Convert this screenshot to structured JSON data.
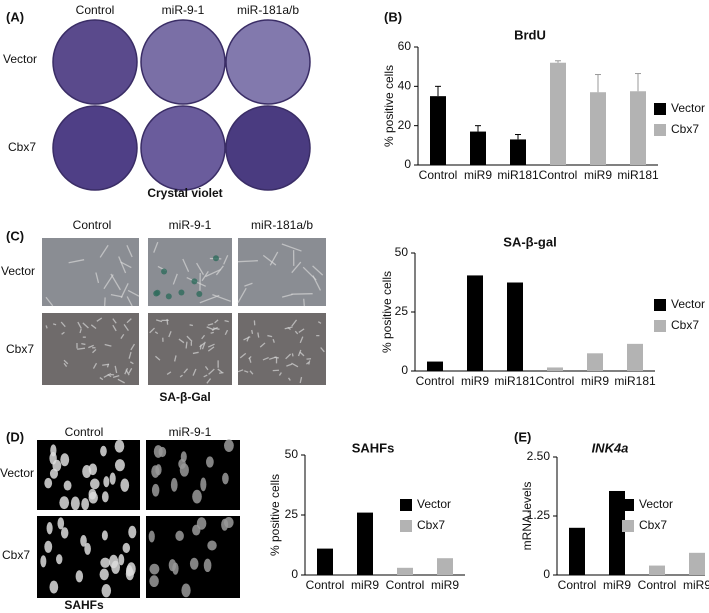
{
  "panels": {
    "A": {
      "label": "(A)",
      "columns": [
        "Control",
        "miR-9-1",
        "miR-181a/b"
      ],
      "rows": [
        "Vector",
        "Cbx7"
      ],
      "caption": "Crystal violet"
    },
    "C": {
      "label": "(C)",
      "columns": [
        "Control",
        "miR-9-1",
        "miR-181a/b"
      ],
      "rows": [
        "Vector",
        "Cbx7"
      ],
      "caption": "SA-β-Gal"
    },
    "D": {
      "label": "(D)",
      "columns": [
        "Control",
        "miR-9-1"
      ],
      "rows": [
        "Vector",
        "Cbx7"
      ],
      "caption": "SAHFs"
    }
  },
  "chart_data": [
    {
      "type": "bar",
      "panel": "(B)",
      "title": "BrdU",
      "y_label": "% positive cells",
      "categories": [
        "Control",
        "miR9",
        "miR181",
        "Control",
        "miR9",
        "miR181"
      ],
      "series": [
        {
          "name": "Vector",
          "color": "#000000",
          "values": [
            35,
            17,
            13,
            null,
            null,
            null
          ],
          "errors": [
            5,
            3,
            2.5,
            null,
            null,
            null
          ]
        },
        {
          "name": "Cbx7",
          "color": "#b3b3b3",
          "values": [
            null,
            null,
            null,
            52,
            37,
            37.5
          ],
          "errors": [
            null,
            null,
            null,
            1,
            9,
            9
          ]
        }
      ],
      "ylim": [
        0,
        60
      ],
      "yticks": [
        0,
        20,
        40,
        60
      ]
    },
    {
      "type": "bar",
      "panel": "(C)",
      "title": "SA-β-gal",
      "y_label": "% positive cells",
      "categories": [
        "Control",
        "miR9",
        "miR181",
        "Control",
        "miR9",
        "miR181"
      ],
      "series": [
        {
          "name": "Vector",
          "color": "#000000",
          "values": [
            4,
            40.5,
            37.5,
            null,
            null,
            null
          ]
        },
        {
          "name": "Cbx7",
          "color": "#b3b3b3",
          "values": [
            null,
            null,
            null,
            1.5,
            7.5,
            11.5
          ]
        }
      ],
      "ylim": [
        0,
        50
      ],
      "yticks": [
        0,
        25,
        50
      ]
    },
    {
      "type": "bar",
      "panel": "(D)",
      "title": "SAHFs",
      "y_label": "% positive cells",
      "categories": [
        "Control",
        "miR9",
        "Control",
        "miR9"
      ],
      "series": [
        {
          "name": "Vector",
          "color": "#000000",
          "values": [
            11,
            26,
            null,
            null
          ]
        },
        {
          "name": "Cbx7",
          "color": "#b3b3b3",
          "values": [
            null,
            null,
            3,
            7
          ]
        }
      ],
      "ylim": [
        0,
        50
      ],
      "yticks": [
        0,
        25,
        50
      ]
    },
    {
      "type": "bar",
      "panel": "(E)",
      "title": "INK4a",
      "title_italic": true,
      "y_label": "mRNA levels",
      "categories": [
        "Control",
        "miR9",
        "Control",
        "miR9"
      ],
      "series": [
        {
          "name": "Vector",
          "color": "#000000",
          "values": [
            1.0,
            1.78,
            null,
            null
          ]
        },
        {
          "name": "Cbx7",
          "color": "#b3b3b3",
          "values": [
            null,
            null,
            0.2,
            0.47
          ]
        }
      ],
      "ylim": [
        0,
        2.5
      ],
      "yticks": [
        0,
        1.25,
        {
          "value": 2.5,
          "label": "2.50"
        }
      ]
    }
  ]
}
